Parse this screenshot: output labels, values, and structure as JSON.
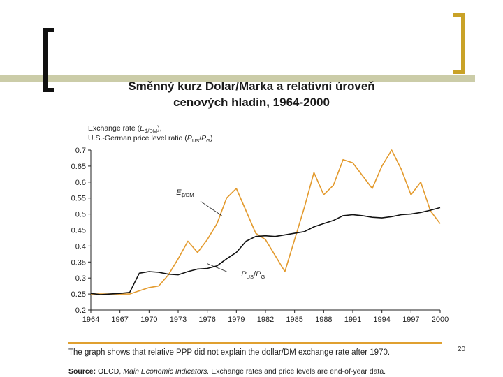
{
  "slide": {
    "title_line1": "Směnný kurz Dolar/Marka  a relativní úroveň",
    "title_line2": "cenových hladin, 1964-2000",
    "page_number": "20",
    "caption": "The graph shows that relative PPP did not explain the dollar/DM exchange rate after 1970.",
    "source_label": "Source:",
    "source_org": "OECD,",
    "source_pub": "Main Economic Indicators.",
    "source_rest": "Exchange rates and price levels are end-of-year data."
  },
  "colors": {
    "exchange_rate": "#e39a2d",
    "price_ratio": "#111111",
    "axis": "#222222",
    "accent_rule": "#e0a030"
  },
  "chart_data": {
    "type": "line",
    "ylabel_line1_prefix": "Exchange rate (",
    "ylabel_line1_E": "E",
    "ylabel_line1_sub": "$/DM",
    "ylabel_line1_suffix": "),",
    "ylabel_line2_prefix": "U.S.-German price level ratio (",
    "ylabel_line2_P1": "P",
    "ylabel_line2_sub1": "US",
    "ylabel_line2_slash": "/",
    "ylabel_line2_P2": "P",
    "ylabel_line2_sub2": "G",
    "ylabel_line2_suffix": ")",
    "ylim": [
      0.2,
      0.7
    ],
    "xlim": [
      1964,
      2000
    ],
    "yticks": [
      "0.2",
      "0.25",
      "0.3",
      "0.35",
      "0.4",
      "0.45",
      "0.5",
      "0.55",
      "0.6",
      "0.65",
      "0.7"
    ],
    "xticks": [
      "1964",
      "1967",
      "1970",
      "1973",
      "1976",
      "1979",
      "1982",
      "1985",
      "1988",
      "1991",
      "1994",
      "1997",
      "2000"
    ],
    "series": [
      {
        "name": "E$/DM",
        "label_main": "E",
        "label_sub": "$/DM",
        "x": [
          1964,
          1965,
          1966,
          1967,
          1968,
          1969,
          1970,
          1971,
          1972,
          1973,
          1974,
          1975,
          1976,
          1977,
          1978,
          1979,
          1980,
          1981,
          1982,
          1983,
          1984,
          1985,
          1986,
          1987,
          1988,
          1989,
          1990,
          1991,
          1992,
          1993,
          1994,
          1995,
          1996,
          1997,
          1998,
          1999,
          2000
        ],
        "values": [
          0.25,
          0.25,
          0.25,
          0.25,
          0.25,
          0.26,
          0.27,
          0.275,
          0.31,
          0.36,
          0.415,
          0.38,
          0.42,
          0.47,
          0.55,
          0.58,
          0.51,
          0.44,
          0.42,
          0.37,
          0.32,
          0.42,
          0.52,
          0.63,
          0.56,
          0.59,
          0.67,
          0.66,
          0.62,
          0.58,
          0.65,
          0.7,
          0.64,
          0.56,
          0.6,
          0.51,
          0.47
        ]
      },
      {
        "name": "PUS/PG",
        "label_main1": "P",
        "label_sub1": "US",
        "label_slash": "/",
        "label_main2": "P",
        "label_sub2": "G",
        "x": [
          1964,
          1965,
          1966,
          1967,
          1968,
          1969,
          1970,
          1971,
          1972,
          1973,
          1974,
          1975,
          1976,
          1977,
          1978,
          1979,
          1980,
          1981,
          1982,
          1983,
          1984,
          1985,
          1986,
          1987,
          1988,
          1989,
          1990,
          1991,
          1992,
          1993,
          1994,
          1995,
          1996,
          1997,
          1998,
          1999,
          2000
        ],
        "values": [
          0.252,
          0.248,
          0.25,
          0.252,
          0.255,
          0.315,
          0.32,
          0.318,
          0.312,
          0.31,
          0.32,
          0.328,
          0.33,
          0.338,
          0.36,
          0.38,
          0.415,
          0.43,
          0.432,
          0.43,
          0.435,
          0.44,
          0.445,
          0.46,
          0.47,
          0.48,
          0.495,
          0.498,
          0.495,
          0.49,
          0.488,
          0.492,
          0.498,
          0.5,
          0.505,
          0.512,
          0.52
        ]
      }
    ]
  }
}
